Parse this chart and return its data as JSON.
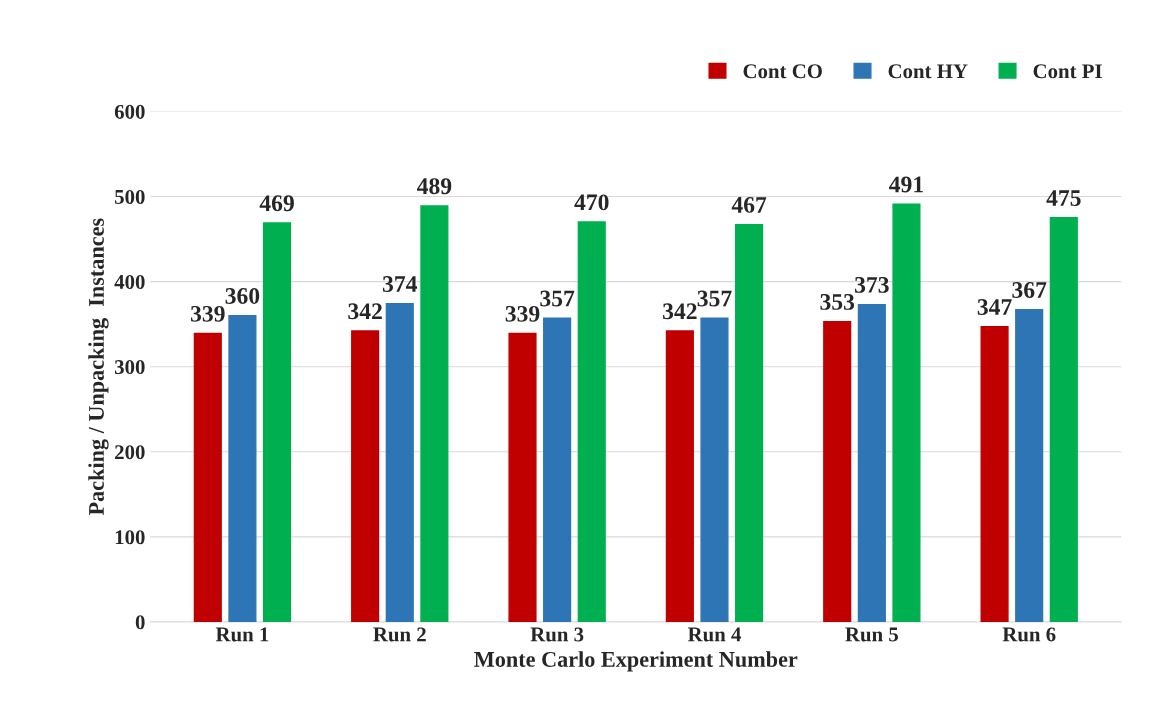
{
  "chart_data": {
    "type": "bar",
    "xlabel": "Monte Carlo Experiment Number",
    "ylabel": "Packing / Unpacking  Instances",
    "categories": [
      "Run 1",
      "Run 2",
      "Run 3",
      "Run 4",
      "Run 5",
      "Run 6"
    ],
    "series": [
      {
        "name": "Cont CO",
        "color": "#c00000",
        "values": [
          339,
          342,
          339,
          342,
          353,
          347
        ]
      },
      {
        "name": "Cont HY",
        "color": "#2e75b6",
        "values": [
          360,
          374,
          357,
          357,
          373,
          367
        ]
      },
      {
        "name": "Cont PI",
        "color": "#00b050",
        "values": [
          469,
          489,
          470,
          467,
          491,
          475
        ]
      }
    ],
    "ylim": [
      0,
      600
    ],
    "yticks": [
      0,
      100,
      200,
      300,
      400,
      500,
      600
    ],
    "grid": "y",
    "legend": "top right",
    "data_labels": true
  }
}
